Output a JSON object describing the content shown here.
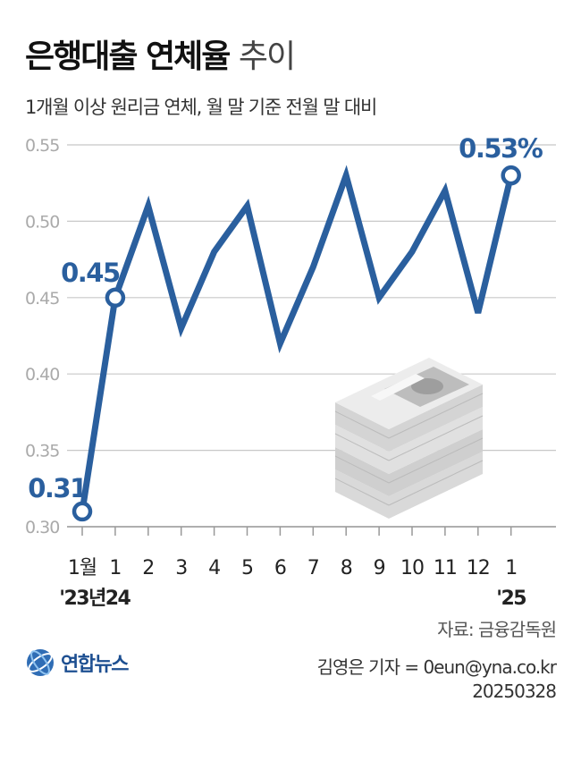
{
  "header": {
    "title_bold": "은행대출 연체율",
    "title_light": "추이",
    "subtitle": "1개월 이상 원리금 연체, 월 말 기준 전월 말 대비"
  },
  "footer": {
    "source": "자료: 금융감독원",
    "reporter": "김영은 기자 = 0eun@yna.co.kr",
    "date": "20250328",
    "logo_text": "연합뉴스"
  },
  "colors": {
    "line": "#2a5f9e",
    "grid": "#c8c8c8",
    "tick": "#aaaaaa",
    "label": "#2a5f9e"
  },
  "chart_data": {
    "type": "line",
    "title": "은행대출 연체율 추이",
    "ylim": [
      0.3,
      0.55
    ],
    "yticks": [
      "0.30",
      "0.35",
      "0.40",
      "0.45",
      "0.50",
      "0.55"
    ],
    "x": [
      "1월",
      "1",
      "2",
      "3",
      "4",
      "5",
      "6",
      "7",
      "8",
      "9",
      "10",
      "11",
      "12",
      "1"
    ],
    "x_year_labels": [
      {
        "index": 0,
        "label": "'23년"
      },
      {
        "index": 1,
        "label": "'24"
      },
      {
        "index": 13,
        "label": "'25"
      }
    ],
    "series": [
      {
        "values": [
          0.31,
          0.45,
          0.51,
          0.43,
          0.48,
          0.51,
          0.42,
          0.47,
          0.53,
          0.45,
          0.48,
          0.52,
          0.44,
          0.53
        ]
      }
    ],
    "annotations": [
      {
        "index": 0,
        "text": "0.31"
      },
      {
        "index": 1,
        "text": "0.45"
      },
      {
        "index": 13,
        "text": "0.53%"
      }
    ],
    "grid": true
  }
}
